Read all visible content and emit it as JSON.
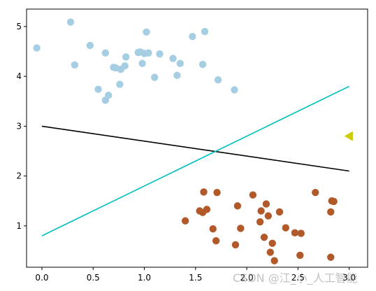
{
  "chart_data": {
    "type": "scatter",
    "title": "",
    "xlabel": "",
    "ylabel": "",
    "xlim": [
      -0.15,
      3.18
    ],
    "ylim": [
      0.17,
      5.35
    ],
    "x_ticks": [
      0.0,
      0.5,
      1.0,
      1.5,
      2.0,
      2.5,
      3.0
    ],
    "x_tick_labels": [
      "0.0",
      "0.5",
      "1.0",
      "1.5",
      "2.0",
      "2.5",
      "3.0"
    ],
    "y_ticks": [
      1,
      2,
      3,
      4,
      5
    ],
    "y_tick_labels": [
      "1",
      "2",
      "3",
      "4",
      "5"
    ],
    "grid": false,
    "series": [
      {
        "color": "#a6cee3",
        "kind": "points",
        "x": [
          -0.05,
          0.28,
          0.32,
          0.47,
          0.55,
          0.62,
          0.62,
          0.65,
          0.7,
          0.72,
          0.76,
          0.77,
          0.81,
          0.82,
          0.94,
          0.96,
          0.98,
          1.0,
          1.02,
          1.04,
          1.1,
          1.15,
          1.28,
          1.32,
          1.35,
          1.47,
          1.57,
          1.59,
          1.72,
          1.88
        ],
        "y": [
          4.57,
          5.09,
          4.23,
          4.62,
          3.74,
          4.47,
          3.52,
          3.62,
          4.18,
          4.17,
          3.84,
          4.14,
          4.21,
          4.39,
          4.48,
          4.49,
          4.26,
          4.46,
          4.89,
          4.47,
          3.98,
          4.45,
          4.36,
          4.02,
          4.26,
          4.8,
          4.24,
          4.9,
          3.93,
          3.73
        ]
      },
      {
        "color": "#b15928",
        "kind": "points",
        "x": [
          1.4,
          1.54,
          1.57,
          1.58,
          1.61,
          1.67,
          1.7,
          1.71,
          1.89,
          1.91,
          1.94,
          2.06,
          2.13,
          2.14,
          2.17,
          2.19,
          2.21,
          2.23,
          2.25,
          2.27,
          2.32,
          2.38,
          2.47,
          2.52,
          2.53,
          2.67,
          2.82,
          2.82,
          2.83,
          2.85
        ],
        "y": [
          1.1,
          1.3,
          1.27,
          1.68,
          1.33,
          0.94,
          0.7,
          1.67,
          0.62,
          1.4,
          0.95,
          1.62,
          1.08,
          1.3,
          0.77,
          1.44,
          1.2,
          0.47,
          0.65,
          0.3,
          1.28,
          0.96,
          0.86,
          0.41,
          0.85,
          1.67,
          1.28,
          0.37,
          1.5,
          1.49
        ]
      },
      {
        "color": "#000000",
        "kind": "line",
        "x": [
          0.0,
          3.0
        ],
        "y": [
          3.0,
          2.1
        ]
      },
      {
        "color": "#00bfbf",
        "kind": "line",
        "x": [
          0.0,
          3.0
        ],
        "y": [
          0.8,
          3.8
        ]
      },
      {
        "color": "#cccc00",
        "kind": "marker",
        "marker": "triangle-left",
        "x": [
          3.0
        ],
        "y": [
          2.8
        ]
      }
    ]
  },
  "watermark": "CSDN @江_小_人工智能"
}
